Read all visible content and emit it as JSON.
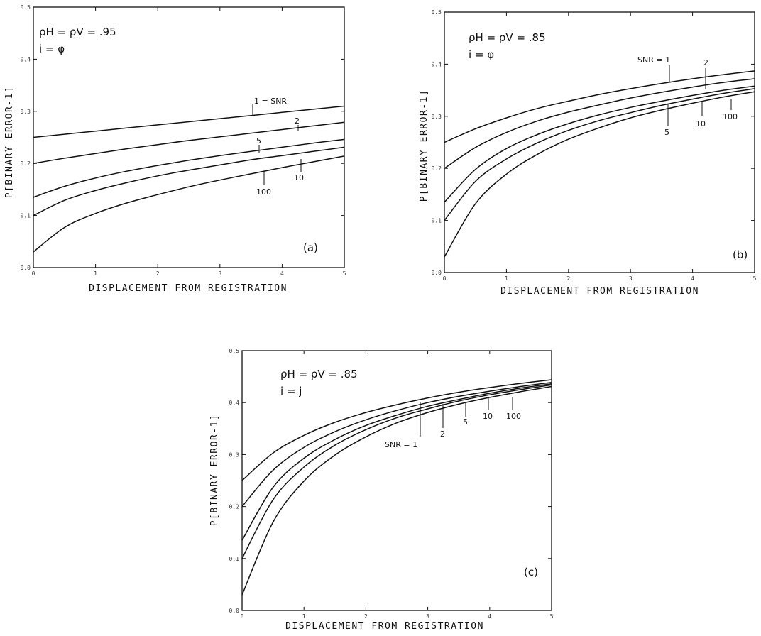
{
  "chart_data": [
    {
      "type": "line",
      "panel_label": "(a)",
      "param_lines": [
        "ρH = ρV = .95",
        "i = φ"
      ],
      "xlabel": "DISPLACEMENT FROM REGISTRATION",
      "ylabel": "P[BINARY ERROR-1]",
      "xlim": [
        0,
        5
      ],
      "ylim": [
        0,
        0.5
      ],
      "xticks": [
        "0",
        "1",
        "2",
        "3",
        "4",
        "5"
      ],
      "yticks": [
        "0.0",
        "0.1",
        "0.2",
        "0.3",
        "0.4",
        "0.5"
      ],
      "x": [
        0,
        0.5,
        1,
        1.5,
        2,
        2.5,
        3,
        3.5,
        4,
        4.5,
        5
      ],
      "series": [
        {
          "name": "1 = SNR",
          "values": [
            0.25,
            0.256,
            0.262,
            0.268,
            0.274,
            0.28,
            0.286,
            0.292,
            0.298,
            0.304,
            0.31
          ]
        },
        {
          "name": "2",
          "values": [
            0.2,
            0.21,
            0.219,
            0.228,
            0.236,
            0.244,
            0.251,
            0.258,
            0.265,
            0.272,
            0.279
          ]
        },
        {
          "name": "5",
          "values": [
            0.135,
            0.156,
            0.172,
            0.185,
            0.196,
            0.206,
            0.215,
            0.223,
            0.231,
            0.239,
            0.246
          ]
        },
        {
          "name": "10",
          "values": [
            0.1,
            0.129,
            0.148,
            0.163,
            0.176,
            0.187,
            0.197,
            0.207,
            0.215,
            0.223,
            0.231
          ]
        },
        {
          "name": "100",
          "values": [
            0.03,
            0.077,
            0.104,
            0.124,
            0.14,
            0.155,
            0.168,
            0.18,
            0.192,
            0.203,
            0.214
          ]
        }
      ],
      "annotations": [
        "1 = SNR",
        "2",
        "5",
        "10",
        "100",
        "(a)"
      ]
    },
    {
      "type": "line",
      "panel_label": "(b)",
      "param_lines": [
        "ρH = ρV = .85",
        "i = φ"
      ],
      "xlabel": "DISPLACEMENT FROM REGISTRATION",
      "ylabel": "P[BINARY ERROR-1]",
      "xlim": [
        0,
        5
      ],
      "ylim": [
        0,
        0.5
      ],
      "xticks": [
        "0",
        "1",
        "2",
        "3",
        "4",
        "5"
      ],
      "yticks": [
        "0.0",
        "0.1",
        "0.2",
        "0.3",
        "0.4",
        "0.5"
      ],
      "x": [
        0,
        0.5,
        1,
        1.5,
        2,
        2.5,
        3,
        3.5,
        4,
        4.5,
        5
      ],
      "series": [
        {
          "name": "SNR = 1",
          "values": [
            0.25,
            0.276,
            0.297,
            0.315,
            0.329,
            0.342,
            0.353,
            0.363,
            0.372,
            0.38,
            0.387
          ]
        },
        {
          "name": "2",
          "values": [
            0.2,
            0.24,
            0.269,
            0.291,
            0.308,
            0.322,
            0.335,
            0.346,
            0.356,
            0.365,
            0.372
          ]
        },
        {
          "name": "5",
          "values": [
            0.135,
            0.198,
            0.238,
            0.265,
            0.286,
            0.303,
            0.317,
            0.329,
            0.34,
            0.35,
            0.358
          ]
        },
        {
          "name": "10",
          "values": [
            0.1,
            0.175,
            0.218,
            0.249,
            0.273,
            0.292,
            0.307,
            0.321,
            0.333,
            0.344,
            0.353
          ]
        },
        {
          "name": "100",
          "values": [
            0.03,
            0.132,
            0.189,
            0.227,
            0.256,
            0.278,
            0.297,
            0.312,
            0.325,
            0.337,
            0.347
          ]
        }
      ],
      "annotations": [
        "SNR = 1",
        "2",
        "5",
        "10",
        "100",
        "(b)"
      ]
    },
    {
      "type": "line",
      "panel_label": "(c)",
      "param_lines": [
        "ρH = ρV = .85",
        "i = j"
      ],
      "xlabel": "DISPLACEMENT FROM REGISTRATION",
      "ylabel": "P[BINARY ERROR-1]",
      "xlim": [
        0,
        5
      ],
      "ylim": [
        0,
        0.5
      ],
      "xticks": [
        "0",
        "1",
        "2",
        "3",
        "4",
        "5"
      ],
      "yticks": [
        "0.0",
        "0.1",
        "0.2",
        "0.3",
        "0.4",
        "0.5"
      ],
      "x": [
        0,
        0.5,
        1,
        1.5,
        2,
        2.5,
        3,
        3.5,
        4,
        4.5,
        5
      ],
      "series": [
        {
          "name": "SNR = 1",
          "values": [
            0.25,
            0.303,
            0.337,
            0.362,
            0.381,
            0.396,
            0.409,
            0.42,
            0.429,
            0.437,
            0.444
          ]
        },
        {
          "name": "2",
          "values": [
            0.2,
            0.27,
            0.314,
            0.344,
            0.367,
            0.385,
            0.4,
            0.412,
            0.422,
            0.431,
            0.439
          ]
        },
        {
          "name": "5",
          "values": [
            0.135,
            0.237,
            0.293,
            0.329,
            0.356,
            0.376,
            0.393,
            0.406,
            0.418,
            0.428,
            0.436
          ]
        },
        {
          "name": "10",
          "values": [
            0.1,
            0.213,
            0.276,
            0.318,
            0.348,
            0.371,
            0.388,
            0.403,
            0.415,
            0.425,
            0.434
          ]
        },
        {
          "name": "100",
          "values": [
            0.03,
            0.17,
            0.249,
            0.299,
            0.334,
            0.361,
            0.381,
            0.397,
            0.41,
            0.421,
            0.431
          ]
        }
      ],
      "annotations": [
        "SNR = 1",
        "2",
        "5",
        "10",
        "100",
        "(c)"
      ]
    }
  ]
}
